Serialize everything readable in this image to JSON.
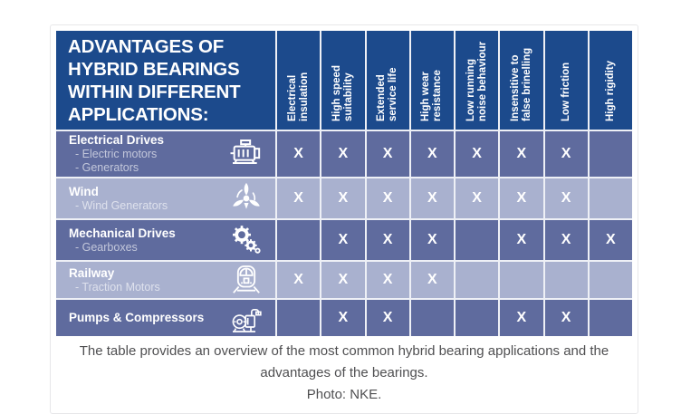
{
  "colors": {
    "header_bg": "#1c4a8c",
    "row_dark": "#5f6b9e",
    "row_light": "#a9b1cf",
    "grid_line": "#eef0f6",
    "mark_color": "#ffffff",
    "caption_color": "#4f4f51"
  },
  "table": {
    "title": "ADVANTAGES OF\nHYBRID BEARINGS\nWITHIN DIFFERENT\nAPPLICATIONS:",
    "mark_symbol": "X",
    "columns": [
      "Electrical\ninsulation",
      "High speed\nsuitability",
      "Extended\nservice life",
      "High wear\nresistance",
      "Low running\nnoise behaviour",
      "Insensitive to\nfalse brinelling",
      "Low friction",
      "High rigidity"
    ],
    "rows": [
      {
        "title": "Electrical Drives",
        "subitems": "- Electric motors\n- Generators",
        "icon": "electric-motor-icon",
        "shade": "dark",
        "marks": [
          1,
          1,
          1,
          1,
          1,
          1,
          1,
          0
        ]
      },
      {
        "title": "Wind",
        "subitems": "- Wind Generators",
        "icon": "wind-turbine-icon",
        "shade": "light",
        "marks": [
          1,
          1,
          1,
          1,
          1,
          1,
          1,
          0
        ]
      },
      {
        "title": "Mechanical Drives",
        "subitems": "- Gearboxes",
        "icon": "gears-icon",
        "shade": "dark",
        "marks": [
          0,
          1,
          1,
          1,
          0,
          1,
          1,
          1
        ]
      },
      {
        "title": "Railway",
        "subitems": "- Traction Motors",
        "icon": "train-icon",
        "shade": "light",
        "marks": [
          1,
          1,
          1,
          1,
          0,
          0,
          0,
          0
        ]
      },
      {
        "title": "Pumps & Compressors",
        "subitems": "",
        "icon": "pump-icon",
        "shade": "dark",
        "marks": [
          0,
          1,
          1,
          0,
          0,
          1,
          1,
          0
        ]
      }
    ]
  },
  "caption": {
    "text": "The table provides an overview of the most common hybrid bearing applications and the advantages of the bearings.",
    "credit": "Photo: NKE."
  }
}
